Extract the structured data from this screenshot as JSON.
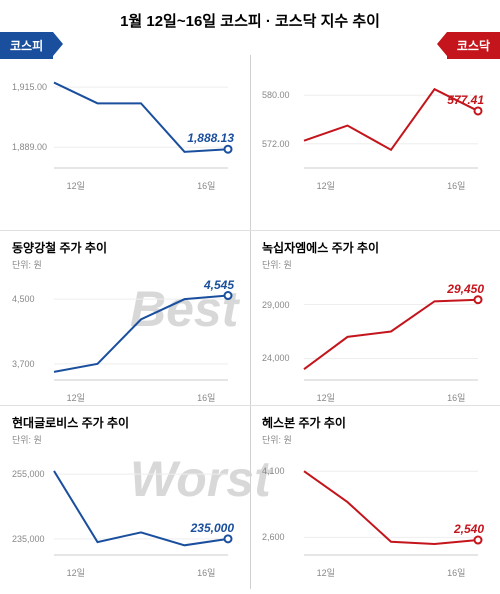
{
  "title": "1월 12일~16일 코스피 · 코스닥 지수 추이",
  "badges": {
    "left": "코스피",
    "right": "코스닥"
  },
  "watermarks": {
    "best": "Best",
    "worst": "Worst"
  },
  "colors": {
    "blue": "#1a4f9e",
    "red": "#c4151c",
    "grid": "#eee",
    "axis": "#ccc",
    "text_muted": "#888"
  },
  "xticks": {
    "labels": [
      "12일",
      "16일"
    ],
    "positions": [
      0.125,
      0.875
    ]
  },
  "panels": {
    "left": [
      {
        "title": "",
        "unit": "",
        "yticks": [
          {
            "label": "1,915.00",
            "v": 1915
          },
          {
            "label": "1,889.00",
            "v": 1889
          }
        ],
        "ylim": [
          1880,
          1922
        ],
        "values": [
          1917,
          1908,
          1908,
          1887,
          1888.13
        ],
        "final_label": "1,888.13",
        "color": "blue"
      },
      {
        "title": "동양강철 주가 추이",
        "unit": "단위: 원",
        "yticks": [
          {
            "label": "4,500",
            "v": 4500
          },
          {
            "label": "3,700",
            "v": 3700
          }
        ],
        "ylim": [
          3500,
          4700
        ],
        "values": [
          3600,
          3700,
          4250,
          4500,
          4545
        ],
        "final_label": "4,545",
        "color": "blue"
      },
      {
        "title": "현대글로비스 주가 추이",
        "unit": "단위: 원",
        "yticks": [
          {
            "label": "255,000",
            "v": 255000
          },
          {
            "label": "235,000",
            "v": 235000
          }
        ],
        "ylim": [
          230000,
          260000
        ],
        "values": [
          256000,
          234000,
          237000,
          233000,
          235000
        ],
        "final_label": "235,000",
        "color": "blue"
      }
    ],
    "right": [
      {
        "title": "",
        "unit": "",
        "yticks": [
          {
            "label": "580.00",
            "v": 580
          },
          {
            "label": "572.00",
            "v": 572
          }
        ],
        "ylim": [
          568,
          584
        ],
        "values": [
          572.5,
          575,
          571,
          581,
          577.41
        ],
        "final_label": "577.41",
        "color": "red"
      },
      {
        "title": "녹십자엠에스 주가 추이",
        "unit": "단위: 원",
        "yticks": [
          {
            "label": "29,000",
            "v": 29000
          },
          {
            "label": "24,000",
            "v": 24000
          }
        ],
        "ylim": [
          22000,
          31000
        ],
        "values": [
          23000,
          26000,
          26500,
          29300,
          29450
        ],
        "final_label": "29,450",
        "color": "red"
      },
      {
        "title": "헤스본 주가 추이",
        "unit": "단위: 원",
        "yticks": [
          {
            "label": "4,100",
            "v": 4100
          },
          {
            "label": "2,600",
            "v": 2600
          }
        ],
        "ylim": [
          2200,
          4400
        ],
        "values": [
          4100,
          3400,
          2500,
          2450,
          2540
        ],
        "final_label": "2,540",
        "color": "red"
      }
    ]
  }
}
